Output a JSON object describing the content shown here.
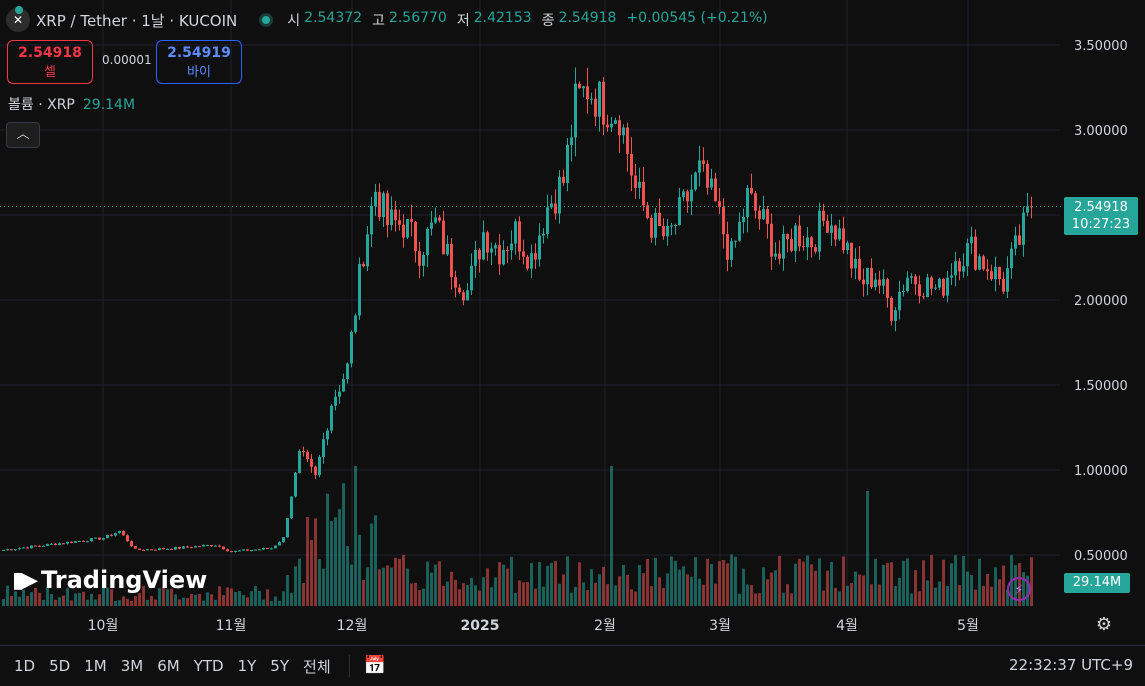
{
  "header": {
    "symbol": "XRP / Tether · 1날 · KUCOIN",
    "ohlc": [
      {
        "label": "시",
        "value": "2.54372"
      },
      {
        "label": "고",
        "value": "2.56770"
      },
      {
        "label": "저",
        "value": "2.42153"
      },
      {
        "label": "종",
        "value": "2.54918"
      }
    ],
    "change": "+0.00545 (+0.21%)"
  },
  "trade": {
    "sell_price": "2.54918",
    "sell_label": "셀",
    "spread": "0.00001",
    "buy_price": "2.54919",
    "buy_label": "바이"
  },
  "volume_legend": {
    "label": "볼륨 · XRP",
    "value": "29.14M"
  },
  "watermark": "TradingView",
  "last_price": {
    "price": "2.54918",
    "countdown": "10:27:23"
  },
  "volume_tag": "29.14M",
  "timeframes": [
    "1D",
    "5D",
    "1M",
    "3M",
    "6M",
    "YTD",
    "1Y",
    "5Y",
    "전체"
  ],
  "clock": "22:32:37 UTC+9",
  "colors": {
    "up": "#26a69a",
    "down": "#ef5350",
    "background": "#0f0f0f",
    "grid": "#1e222d"
  },
  "chart_data": {
    "type": "candlestick",
    "y_axis_labels": [
      "3.50000",
      "3.00000",
      "2.50000",
      "2.00000",
      "1.50000",
      "1.00000",
      "0.50000"
    ],
    "y_ticks": [
      3.5,
      3.0,
      2.5,
      2.0,
      1.5,
      1.0,
      0.5
    ],
    "ylim": [
      0.2,
      3.75
    ],
    "x_axis_labels": [
      "10월",
      "11월",
      "12월",
      "2025",
      "2월",
      "3월",
      "4월",
      "5월"
    ],
    "last_close": 2.54918,
    "price_path": [
      [
        0,
        0.53
      ],
      [
        18,
        0.58
      ],
      [
        25,
        0.6
      ],
      [
        29,
        0.64
      ],
      [
        33,
        0.53
      ],
      [
        43,
        0.54
      ],
      [
        53,
        0.56
      ],
      [
        57,
        0.52
      ],
      [
        67,
        0.54
      ],
      [
        70,
        0.6
      ],
      [
        74,
        1.1
      ],
      [
        78,
        0.95
      ],
      [
        82,
        1.4
      ],
      [
        86,
        1.6
      ],
      [
        90,
        2.3
      ],
      [
        93,
        2.65
      ],
      [
        96,
        2.45
      ],
      [
        100,
        2.45
      ],
      [
        104,
        2.3
      ],
      [
        108,
        2.45
      ],
      [
        112,
        2.2
      ],
      [
        116,
        2.05
      ],
      [
        120,
        2.4
      ],
      [
        124,
        2.3
      ],
      [
        128,
        2.4
      ],
      [
        132,
        2.25
      ],
      [
        136,
        2.55
      ],
      [
        140,
        2.7
      ],
      [
        143,
        3.15
      ],
      [
        146,
        3.25
      ],
      [
        150,
        3.15
      ],
      [
        154,
        3.1
      ],
      [
        158,
        2.65
      ],
      [
        162,
        2.45
      ],
      [
        166,
        2.35
      ],
      [
        170,
        2.55
      ],
      [
        174,
        2.75
      ],
      [
        178,
        2.55
      ],
      [
        182,
        2.25
      ],
      [
        186,
        2.6
      ],
      [
        190,
        2.45
      ],
      [
        194,
        2.25
      ],
      [
        198,
        2.4
      ],
      [
        202,
        2.35
      ],
      [
        206,
        2.5
      ],
      [
        210,
        2.35
      ],
      [
        214,
        2.1
      ],
      [
        218,
        2.15
      ],
      [
        222,
        1.95
      ],
      [
        226,
        2.15
      ],
      [
        230,
        2.1
      ],
      [
        234,
        2.05
      ],
      [
        238,
        2.25
      ],
      [
        242,
        2.3
      ],
      [
        246,
        2.2
      ],
      [
        250,
        2.1
      ],
      [
        254,
        2.35
      ],
      [
        257,
        2.55
      ]
    ],
    "volume_unit": "XRP",
    "last_volume": "29.14M"
  }
}
